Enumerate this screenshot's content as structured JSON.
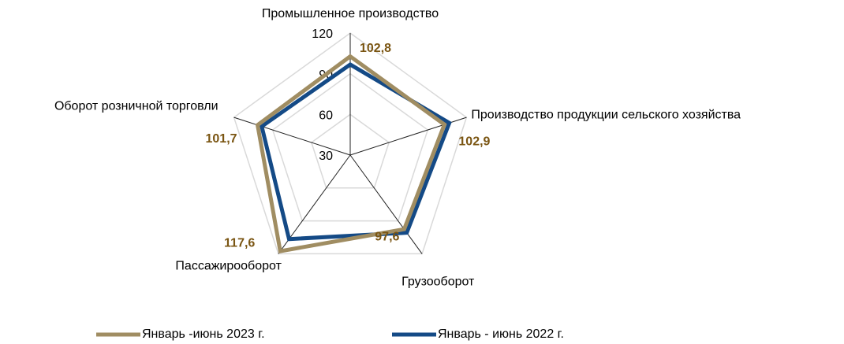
{
  "chart_data": {
    "type": "radar",
    "categories": [
      "Промышленное производство",
      "Производство продукции сельского хозяйства",
      "Грузооборот",
      "Пассажирооборот",
      "Оборот розничной торговли"
    ],
    "series": [
      {
        "name": "Январь -июнь 2023 г.",
        "color": "#a08d62",
        "values": [
          102.8,
          102.9,
          97.6,
          117.6,
          101.7
        ],
        "value_labels": [
          "102,8",
          "102,9",
          "97,6",
          "117,6",
          "101,7"
        ]
      },
      {
        "name": "Январь - июнь 2022 г.",
        "color": "#144a86",
        "values": [
          96.8,
          106.7,
          100.8,
          106.6,
          98.5
        ]
      }
    ],
    "ylim": [
      30,
      120
    ],
    "yticks": [
      30,
      60,
      90,
      120
    ],
    "grid": true
  }
}
